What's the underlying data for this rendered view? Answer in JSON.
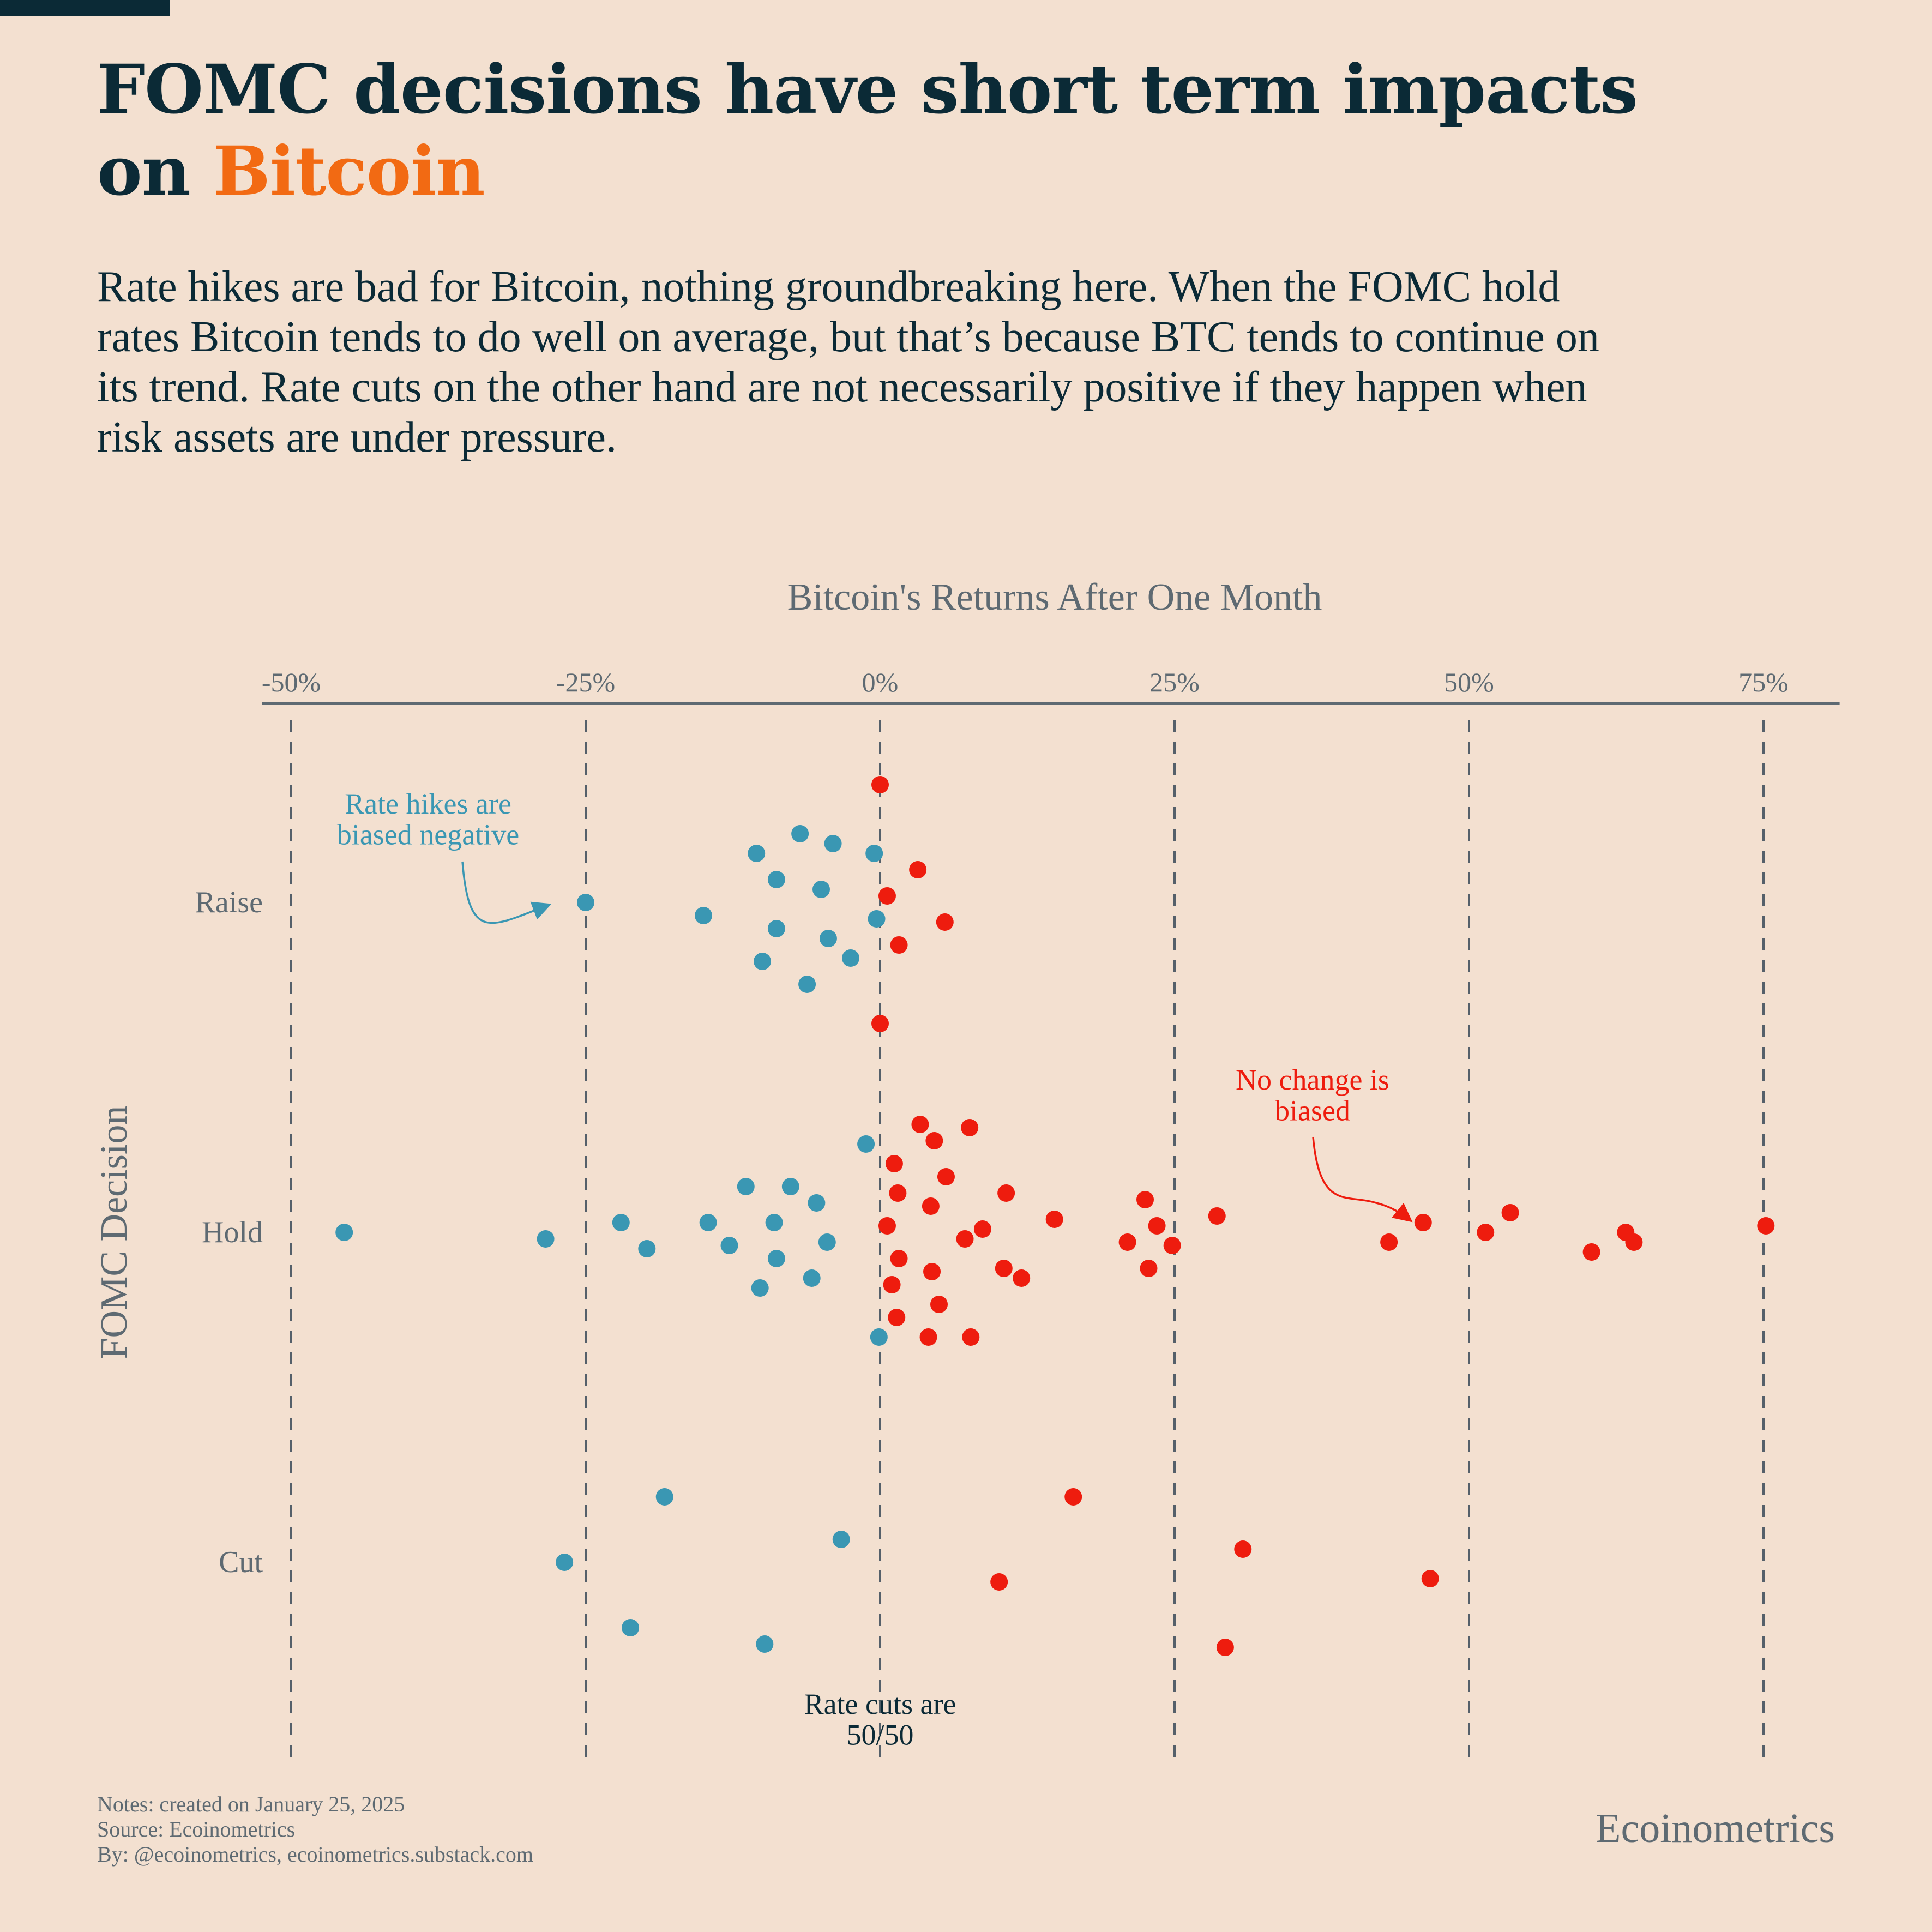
{
  "header": {
    "title_line1": "FOMC decisions have short term impacts",
    "title_line2_prefix": "on",
    "title_accent": "Bitcoin",
    "subtitle": "Rate hikes are bad for Bitcoin, nothing groundbreaking here. When the FOMC hold rates Bitcoin tends to do well on average, but that’s because BTC tends to continue on its trend. Rate cuts on the other hand are not necessarily positive if they happen when risk assets are under pressure."
  },
  "chart_data": {
    "type": "scatter",
    "chart_style": "beeswarm / strip plot",
    "xlabel": "Bitcoin's Returns After One Month",
    "ylabel": "FOMC Decision",
    "x_axis_position": "top",
    "xlim": [
      -52,
      81
    ],
    "x_ticks": [
      -50,
      -25,
      0,
      25,
      50,
      75
    ],
    "x_tick_labels": [
      "-50%",
      "-25%",
      "0%",
      "25%",
      "50%",
      "75%"
    ],
    "vertical_grid": "dashed at ticks",
    "categories": [
      "Raise",
      "Hold",
      "Cut"
    ],
    "colors": {
      "negative": "#3a97b3",
      "positive": "#ee1c0e"
    },
    "groups": [
      {
        "name": "Raise",
        "points": [
          {
            "x": -25.0,
            "y": 0.0
          },
          {
            "x": -15.0,
            "y": -0.04
          },
          {
            "x": -10.5,
            "y": 0.15
          },
          {
            "x": -8.8,
            "y": -0.08
          },
          {
            "x": -6.8,
            "y": 0.21
          },
          {
            "x": -4.0,
            "y": 0.18
          },
          {
            "x": -0.5,
            "y": 0.15
          },
          {
            "x": 3.2,
            "y": 0.1
          },
          {
            "x": -8.8,
            "y": 0.07
          },
          {
            "x": -5.0,
            "y": 0.04
          },
          {
            "x": 0.6,
            "y": 0.02
          },
          {
            "x": -0.3,
            "y": -0.05
          },
          {
            "x": 5.5,
            "y": -0.06
          },
          {
            "x": -4.4,
            "y": -0.11
          },
          {
            "x": 1.6,
            "y": -0.13
          },
          {
            "x": -10.0,
            "y": -0.18
          },
          {
            "x": -2.5,
            "y": -0.17
          },
          {
            "x": -6.2,
            "y": -0.25
          },
          {
            "x": 0.0,
            "y": 0.36
          },
          {
            "x": 0.0,
            "y": -0.37
          }
        ]
      },
      {
        "name": "Hold",
        "points": [
          {
            "x": -45.5,
            "y": 0.0
          },
          {
            "x": -28.4,
            "y": -0.02
          },
          {
            "x": -22.0,
            "y": 0.03
          },
          {
            "x": -19.8,
            "y": -0.05
          },
          {
            "x": -14.6,
            "y": 0.03
          },
          {
            "x": -12.8,
            "y": -0.04
          },
          {
            "x": -9.0,
            "y": 0.03
          },
          {
            "x": -4.5,
            "y": -0.03
          },
          {
            "x": -11.4,
            "y": 0.14
          },
          {
            "x": -7.6,
            "y": 0.14
          },
          {
            "x": -5.4,
            "y": 0.09
          },
          {
            "x": -8.8,
            "y": -0.08
          },
          {
            "x": -10.2,
            "y": -0.17
          },
          {
            "x": -5.8,
            "y": -0.14
          },
          {
            "x": -1.2,
            "y": 0.27
          },
          {
            "x": -0.1,
            "y": -0.32
          },
          {
            "x": 0.6,
            "y": 0.02
          },
          {
            "x": 1.2,
            "y": 0.21
          },
          {
            "x": 1.5,
            "y": 0.12
          },
          {
            "x": 1.6,
            "y": -0.08
          },
          {
            "x": 1.0,
            "y": -0.16
          },
          {
            "x": 1.4,
            "y": -0.26
          },
          {
            "x": 3.4,
            "y": 0.33
          },
          {
            "x": 4.6,
            "y": 0.28
          },
          {
            "x": 5.6,
            "y": 0.17
          },
          {
            "x": 4.3,
            "y": 0.08
          },
          {
            "x": 4.4,
            "y": -0.12
          },
          {
            "x": 5.0,
            "y": -0.22
          },
          {
            "x": 4.1,
            "y": -0.32
          },
          {
            "x": 7.6,
            "y": 0.32
          },
          {
            "x": 7.2,
            "y": -0.02
          },
          {
            "x": 8.7,
            "y": 0.01
          },
          {
            "x": 10.7,
            "y": 0.12
          },
          {
            "x": 10.5,
            "y": -0.11
          },
          {
            "x": 12.0,
            "y": -0.14
          },
          {
            "x": 7.7,
            "y": -0.32
          },
          {
            "x": 14.8,
            "y": 0.04
          },
          {
            "x": 21.0,
            "y": -0.03
          },
          {
            "x": 22.5,
            "y": 0.1
          },
          {
            "x": 23.5,
            "y": 0.02
          },
          {
            "x": 24.8,
            "y": -0.04
          },
          {
            "x": 22.8,
            "y": -0.11
          },
          {
            "x": 28.6,
            "y": 0.05
          },
          {
            "x": 43.2,
            "y": -0.03
          },
          {
            "x": 46.1,
            "y": 0.03
          },
          {
            "x": 51.4,
            "y": 0.0
          },
          {
            "x": 53.5,
            "y": 0.06
          },
          {
            "x": 60.4,
            "y": -0.06
          },
          {
            "x": 63.3,
            "y": 0.0
          },
          {
            "x": 64.0,
            "y": -0.03
          },
          {
            "x": 75.2,
            "y": 0.02
          }
        ]
      },
      {
        "name": "Cut",
        "points": [
          {
            "x": -26.8,
            "y": 0.0
          },
          {
            "x": -18.3,
            "y": 0.2
          },
          {
            "x": -21.2,
            "y": -0.2
          },
          {
            "x": -9.8,
            "y": -0.25
          },
          {
            "x": -3.3,
            "y": 0.07
          },
          {
            "x": 10.1,
            "y": -0.06
          },
          {
            "x": 16.4,
            "y": 0.2
          },
          {
            "x": 30.8,
            "y": 0.04
          },
          {
            "x": 29.3,
            "y": -0.26
          },
          {
            "x": 46.7,
            "y": -0.05
          }
        ]
      }
    ],
    "annotations": [
      {
        "text": "Rate hikes are\nbiased negative",
        "color": "#3a97b3",
        "target": "Raise",
        "arrow_to_x": -25.0
      },
      {
        "text": "No change is\nbiased",
        "color": "#ee1c0e",
        "target": "Hold",
        "arrow_to_x": 45.0
      },
      {
        "text": "Rate cuts are\n50/50",
        "color": "#0b2a36",
        "target": "Cut"
      }
    ]
  },
  "footer": {
    "notes_line": "Notes: created on January 25, 2025",
    "source_line": "Source: Ecoinometrics",
    "by_line": "By: @ecoinometrics, ecoinometrics.substack.com",
    "brand": "Ecoinometrics"
  }
}
